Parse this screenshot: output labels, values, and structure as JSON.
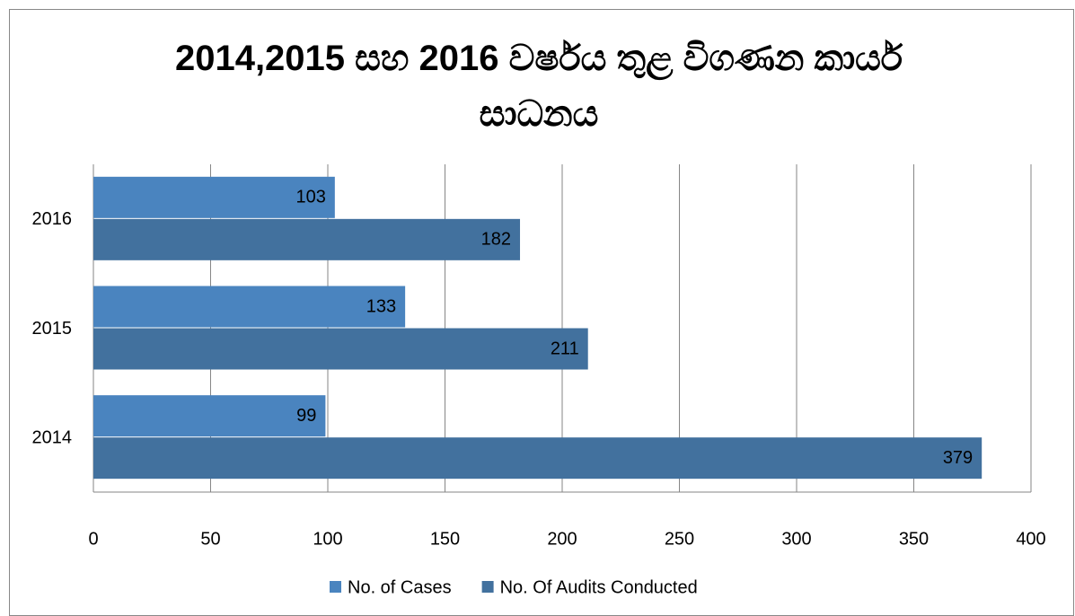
{
  "chart_data": {
    "type": "bar",
    "orientation": "horizontal",
    "title": "2014,2015 සහ 2016 වර්ෂය තුළ විගණන කාර්ය සාධනය",
    "categories": [
      "2014",
      "2015",
      "2016"
    ],
    "series": [
      {
        "name": "No. of Cases",
        "color": "#4a84bf",
        "values": [
          99,
          133,
          103
        ]
      },
      {
        "name": "No. Of Audits Conducted",
        "color": "#42719e",
        "values": [
          379,
          211,
          182
        ]
      }
    ],
    "xlim": [
      0,
      400
    ],
    "xticks": [
      0,
      50,
      100,
      150,
      200,
      250,
      300,
      350,
      400
    ],
    "grid": true,
    "legend": "bottom"
  }
}
